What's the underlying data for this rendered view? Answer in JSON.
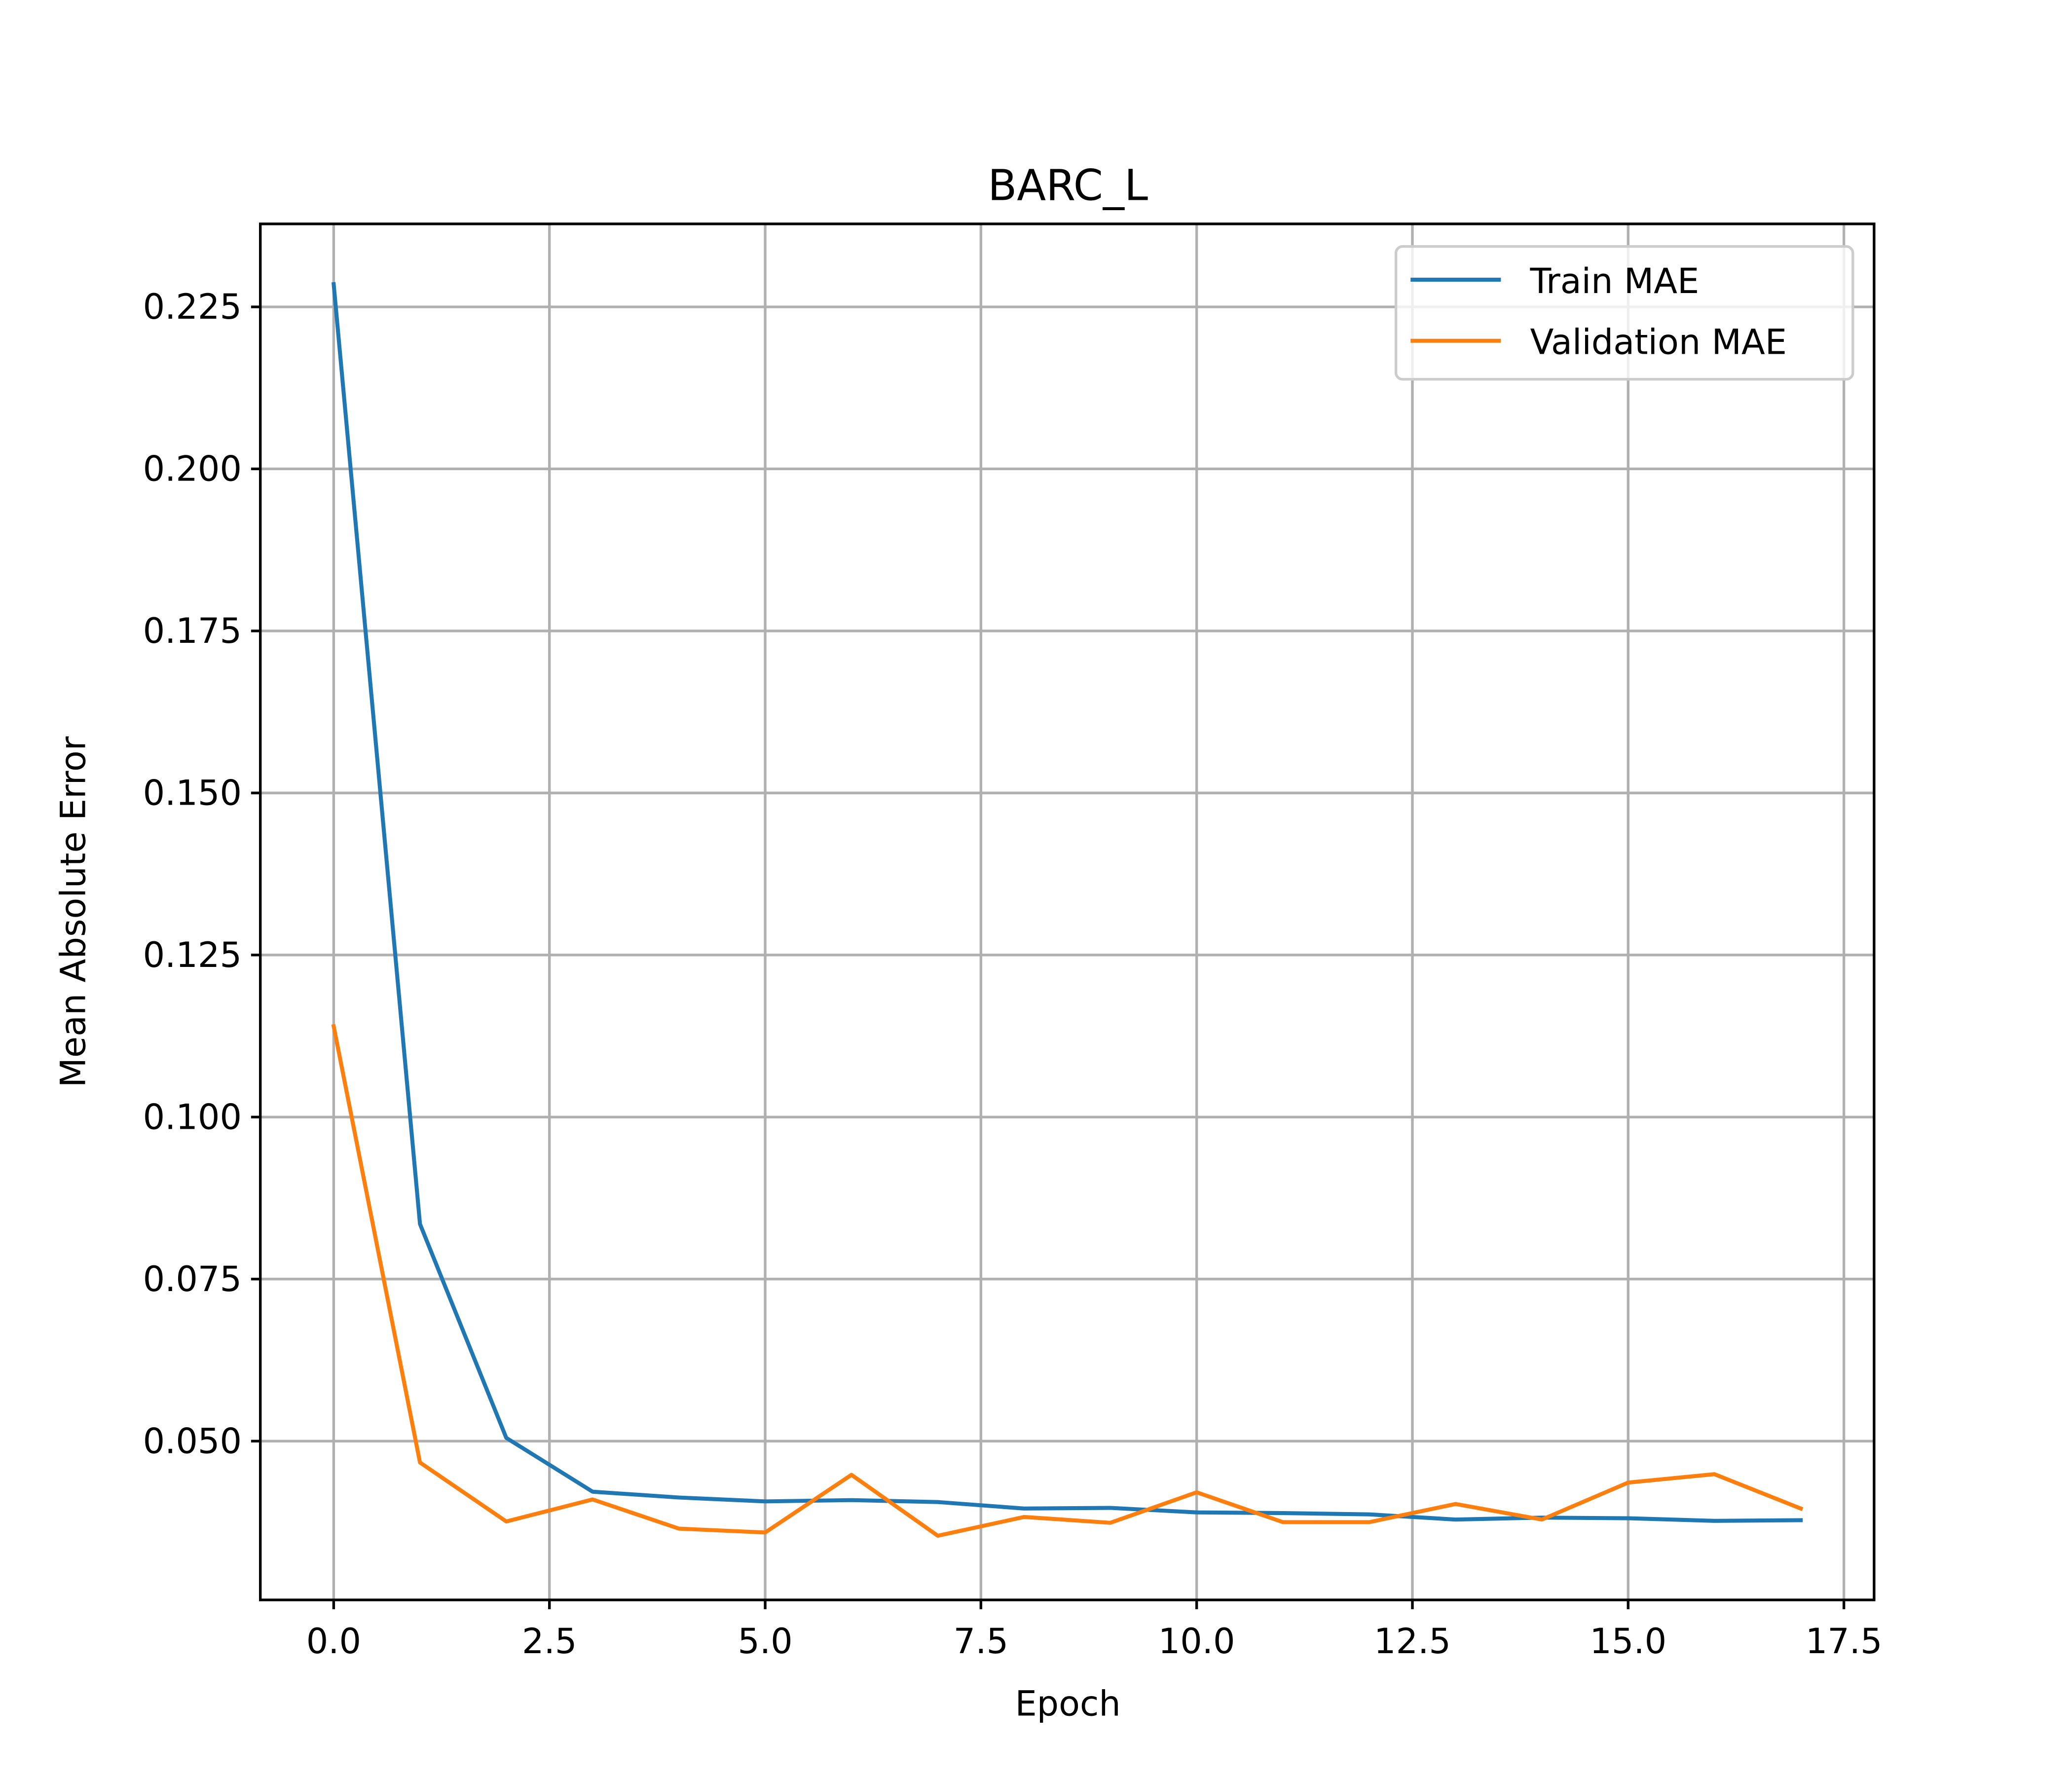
{
  "chart_data": {
    "type": "line",
    "title": "BARC_L",
    "xlabel": "Epoch",
    "ylabel": "Mean Absolute Error",
    "xlim": [
      -0.85,
      17.85
    ],
    "ylim": [
      0.0255,
      0.2378
    ],
    "xticks": [
      0.0,
      2.5,
      5.0,
      7.5,
      10.0,
      12.5,
      15.0,
      17.5
    ],
    "xtick_labels": [
      "0.0",
      "2.5",
      "5.0",
      "7.5",
      "10.0",
      "12.5",
      "15.0",
      "17.5"
    ],
    "yticks": [
      0.05,
      0.075,
      0.1,
      0.125,
      0.15,
      0.175,
      0.2,
      0.225
    ],
    "ytick_labels": [
      "0.050",
      "0.075",
      "0.100",
      "0.125",
      "0.150",
      "0.175",
      "0.200",
      "0.225"
    ],
    "grid": true,
    "legend_position": "top-right",
    "x": [
      0,
      1,
      2,
      3,
      4,
      5,
      6,
      7,
      8,
      9,
      10,
      11,
      12,
      13,
      14,
      15,
      16,
      17
    ],
    "series": [
      {
        "name": "Train MAE",
        "color": "#1f77b4",
        "values": [
          0.2285,
          0.0835,
          0.0505,
          0.0422,
          0.0413,
          0.0407,
          0.0409,
          0.0406,
          0.0396,
          0.0397,
          0.039,
          0.0389,
          0.0387,
          0.0379,
          0.0382,
          0.0381,
          0.0377,
          0.0378
        ]
      },
      {
        "name": "Validation MAE",
        "color": "#ff7f0e",
        "values": [
          0.114,
          0.0467,
          0.0376,
          0.041,
          0.0365,
          0.0359,
          0.0448,
          0.0354,
          0.0383,
          0.0374,
          0.0421,
          0.0375,
          0.0375,
          0.0403,
          0.0379,
          0.0436,
          0.0449,
          0.0396
        ]
      }
    ]
  }
}
